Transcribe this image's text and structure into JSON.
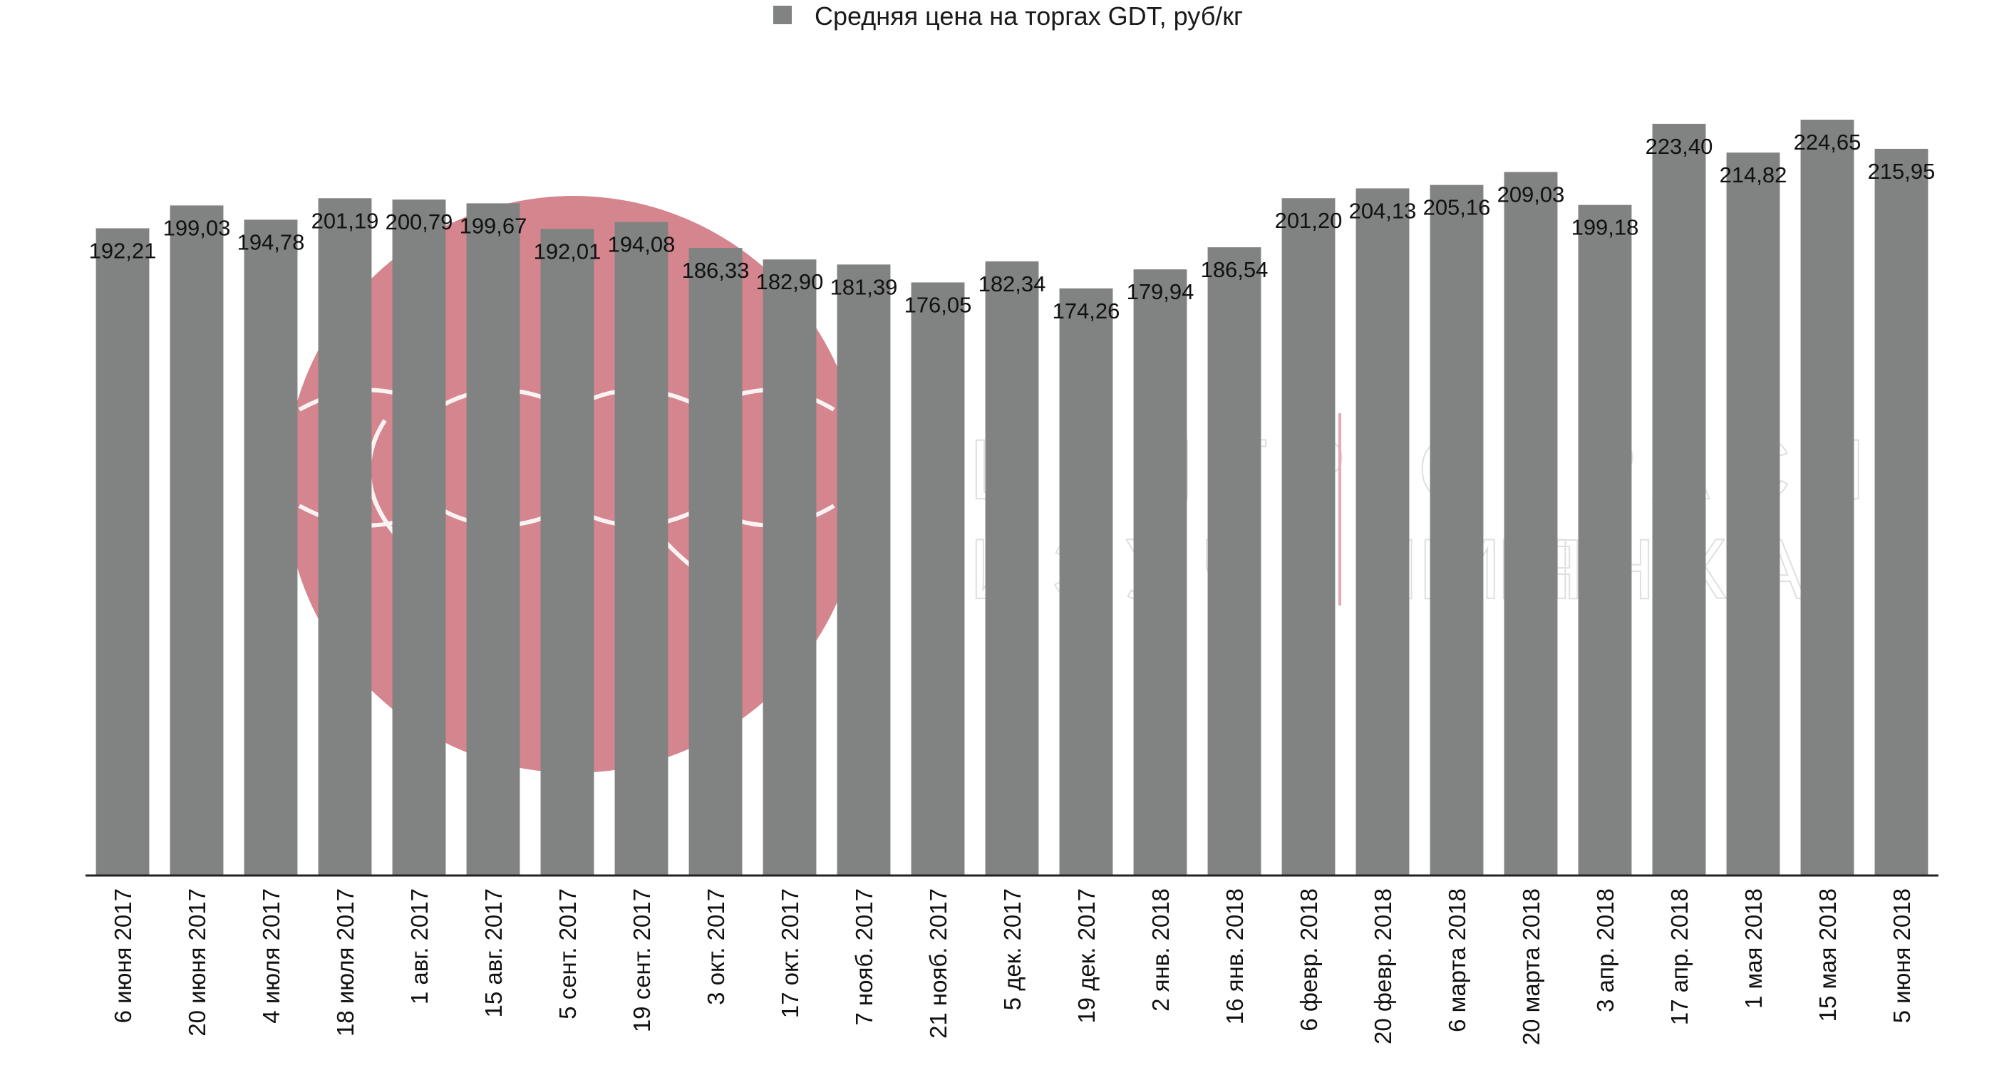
{
  "chart_data": {
    "type": "bar",
    "title": "",
    "xlabel": "",
    "ylabel": "",
    "legend": {
      "position": "top-center",
      "entries": [
        "Средняя цена на торгах GDT, руб/кг"
      ]
    },
    "grid": false,
    "ylim": [
      0,
      240
    ],
    "categories": [
      "6 июня 2017",
      "20 июня 2017",
      "4 июля 2017",
      "18 июля 2017",
      "1 авг. 2017",
      "15 авг. 2017",
      "5 сент. 2017",
      "19 сент. 2017",
      "3 окт. 2017",
      "17 окт. 2017",
      "7 нояб. 2017",
      "21 нояб. 2017",
      "5 дек. 2017",
      "19 дек. 2017",
      "2 янв. 2018",
      "16 янв. 2018",
      "6 февр. 2018",
      "20 февр. 2018",
      "6 марта 2018",
      "20 марта 2018",
      "3 апр. 2018",
      "17 апр. 2018",
      "1 мая 2018",
      "15 мая 2018",
      "5 июня 2018"
    ],
    "series": [
      {
        "name": "Средняя цена на торгах GDT, руб/кг",
        "color": "#808381",
        "values": [
          192.21,
          199.03,
          194.78,
          201.19,
          200.79,
          199.67,
          192.01,
          194.08,
          186.33,
          182.9,
          181.39,
          176.05,
          182.34,
          174.26,
          179.94,
          186.54,
          201.2,
          204.13,
          205.16,
          209.03,
          199.18,
          223.4,
          214.82,
          224.65,
          215.95
        ],
        "value_labels": [
          "192,21",
          "199,03",
          "194,78",
          "201,19",
          "200,79",
          "199,67",
          "192,01",
          "194,08",
          "186,33",
          "182,90",
          "181,39",
          "176,05",
          "182,34",
          "174,26",
          "179,94",
          "186,54",
          "201,20",
          "204,13",
          "205,16",
          "209,03",
          "199,18",
          "223,40",
          "214,82",
          "224,65",
          "215,95"
        ]
      }
    ]
  },
  "colors": {
    "bar": "#808381",
    "axis": "#222222",
    "watermark": "#d4707b"
  },
  "watermark": {
    "kind": "logo",
    "line1": "ЦЕНТР ОТРАСЛЕВОЙ ЭКСПЕРТИЗЫ",
    "line2": "ИЗУЧЕНИЯ РЫНКА"
  }
}
